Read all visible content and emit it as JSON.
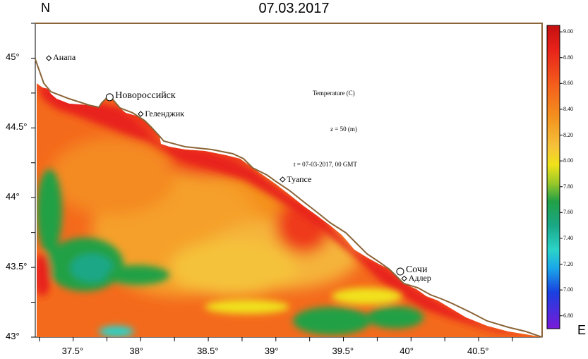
{
  "title": "07.03.2017",
  "compass": {
    "north": "N",
    "east": "E"
  },
  "annotations": {
    "variable": "Temperature (C)",
    "depth": "z = 50 (m)",
    "time": "t = 07-03-2017,  00 GMT"
  },
  "cities": [
    {
      "name": "Анапа",
      "lon": 37.32,
      "lat": 45.0,
      "marker": "diamond",
      "big": false
    },
    {
      "name": "Новороссийск",
      "lon": 37.77,
      "lat": 44.72,
      "marker": "circle",
      "big": true
    },
    {
      "name": "Геленджик",
      "lon": 38.0,
      "lat": 44.6,
      "marker": "diamond",
      "big": false
    },
    {
      "name": "Туапсе",
      "lon": 39.05,
      "lat": 44.13,
      "marker": "diamond",
      "big": false
    },
    {
      "name": "Сочи",
      "lon": 39.92,
      "lat": 43.47,
      "marker": "circle",
      "big": true
    },
    {
      "name": "Адлер",
      "lon": 39.95,
      "lat": 43.42,
      "marker": "diamond",
      "big": false
    }
  ],
  "axes": {
    "lat_ticks": [
      "43°",
      "43.5°",
      "44°",
      "44.5°",
      "45°"
    ],
    "lat_values": [
      43.0,
      43.5,
      44.0,
      44.5,
      45.0
    ],
    "lon_ticks": [
      "37.5°",
      "38°",
      "38.5°",
      "39°",
      "39.5°",
      "40°",
      "40.5°"
    ],
    "lon_values": [
      37.5,
      38.0,
      38.5,
      39.0,
      39.5,
      40.0,
      40.5
    ],
    "lon_range": [
      37.22,
      40.97
    ],
    "lat_range": [
      43.0,
      45.25
    ]
  },
  "colorbar": {
    "labels": [
      "9.00",
      "8.80",
      "8.60",
      "8.40",
      "8.20",
      "8.00",
      "7.80",
      "7.60",
      "7.40",
      "7.20",
      "7.00",
      "6.80"
    ],
    "min": 6.7,
    "max": 9.05
  },
  "colors": {
    "coastline": "#8b6437",
    "hot": "#e8221a",
    "warm": "#f4901e",
    "mid": "#f5c23a",
    "green": "#22a045",
    "cyan": "#2bd3c8"
  }
}
